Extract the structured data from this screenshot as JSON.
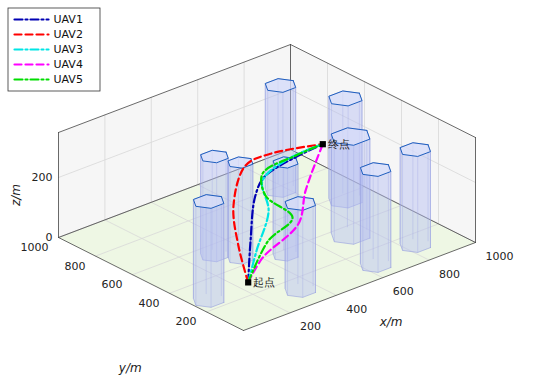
{
  "chart_data": {
    "type": "line3d",
    "xlabel": "x/m",
    "ylabel": "y/m",
    "zlabel": "z/m",
    "xlim": [
      0,
      1000
    ],
    "ylim": [
      0,
      1000
    ],
    "zlim": [
      0,
      350
    ],
    "xticks": [
      200,
      400,
      600,
      800,
      1000
    ],
    "yticks": [
      200,
      400,
      600,
      800,
      1000
    ],
    "zticks": [
      0,
      200
    ],
    "grid": true,
    "legend": "upper left",
    "series": [
      {
        "name": "UAV1",
        "color": "#0000b3",
        "line_style": "dashdot",
        "x": [
          100,
          280,
          512,
          635,
          900
        ],
        "y": [
          100,
          313,
          578,
          677,
          700
        ],
        "z": [
          100,
          120,
          120,
          120,
          140
        ]
      },
      {
        "name": "UAV2",
        "color": "#ff0000",
        "line_style": "dashed",
        "x": [
          100,
          226,
          409,
          634,
          754,
          900
        ],
        "y": [
          100,
          311,
          567,
          785,
          800,
          700
        ],
        "z": [
          100,
          120,
          120,
          120,
          120,
          140
        ]
      },
      {
        "name": "UAV3",
        "color": "#00e5e5",
        "line_style": "dashdot",
        "x": [
          100,
          246,
          471,
          603,
          784,
          900
        ],
        "y": [
          100,
          238,
          455,
          653,
          729,
          700
        ],
        "z": [
          100,
          120,
          120,
          120,
          120,
          140
        ]
      },
      {
        "name": "UAV4",
        "color": "#ff00ff",
        "line_style": "dashed",
        "x": [
          100,
          227,
          481,
          660,
          900
        ],
        "y": [
          100,
          181,
          306,
          492,
          700
        ],
        "z": [
          100,
          120,
          120,
          120,
          140
        ]
      },
      {
        "name": "UAV5",
        "color": "#00dd00",
        "line_style": "dashdot",
        "x": [
          100,
          324,
          496,
          537,
          637,
          806,
          900
        ],
        "y": [
          100,
          272,
          357,
          554,
          696,
          730,
          700
        ],
        "z": [
          100,
          120,
          120,
          120,
          120,
          120,
          140
        ]
      }
    ],
    "obstacles": [
      {
        "x": 295,
        "y": 527,
        "r": 50,
        "h": 330
      },
      {
        "x": 344,
        "y": 448,
        "r": 45,
        "h": 320
      },
      {
        "x": 61,
        "y": 265,
        "r": 55,
        "h": 330
      },
      {
        "x": 470,
        "y": 362,
        "r": 45,
        "h": 310
      },
      {
        "x": 335,
        "y": 113,
        "r": 55,
        "h": 290
      },
      {
        "x": 775,
        "y": 772,
        "r": 55,
        "h": 350
      },
      {
        "x": 886,
        "y": 560,
        "r": 60,
        "h": 340
      },
      {
        "x": 727,
        "y": 333,
        "r": 70,
        "h": 330
      },
      {
        "x": 642,
        "y": 91,
        "r": 55,
        "h": 320
      },
      {
        "x": 837,
        "y": 121,
        "r": 55,
        "h": 320
      }
    ],
    "annotations": [
      {
        "text": "起点",
        "x": 100,
        "y": 100,
        "z": 100,
        "marker": "square"
      },
      {
        "text": "终点",
        "x": 900,
        "y": 700,
        "z": 140,
        "marker": "square"
      }
    ]
  }
}
